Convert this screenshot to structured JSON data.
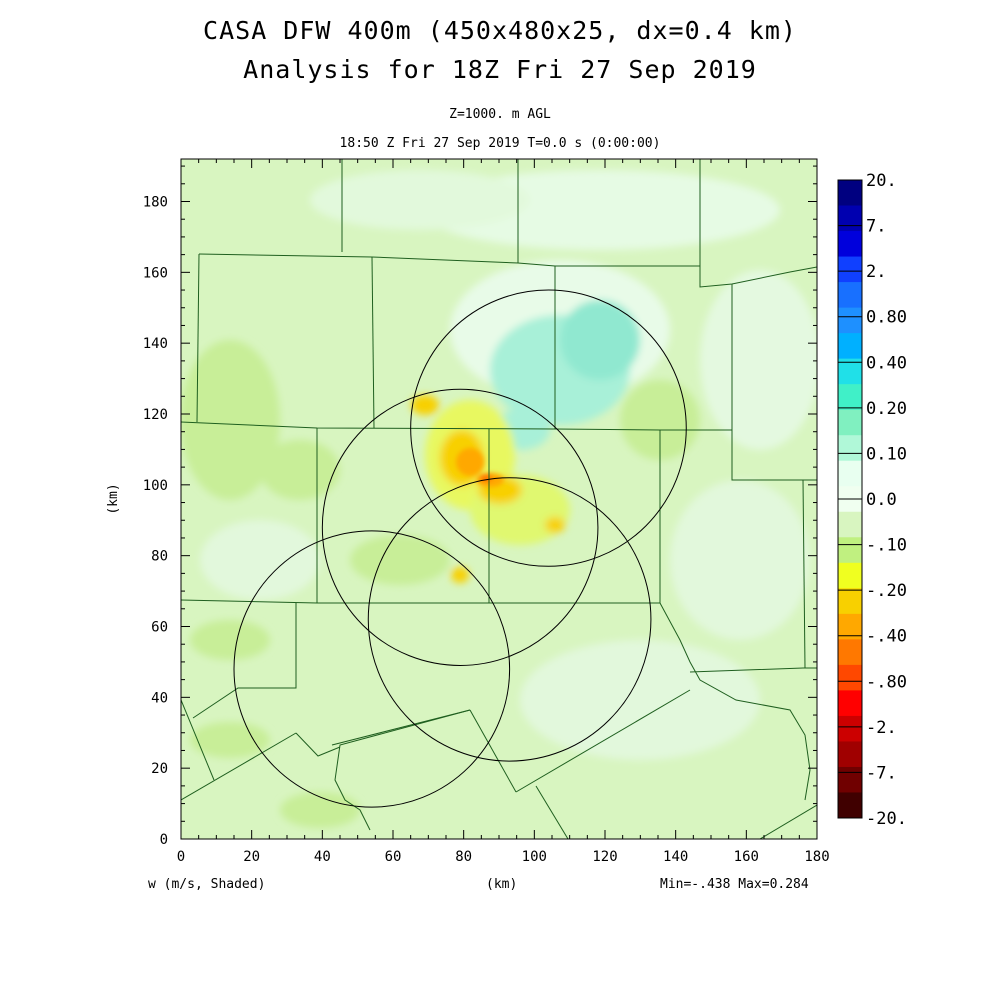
{
  "header": {
    "title_line1": "CASA DFW 400m (450x480x25, dx=0.4 km)",
    "title_line2": "Analysis for 18Z Fri 27 Sep 2019",
    "level": "Z=1000. m AGL",
    "time": "18:50 Z Fri 27 Sep 2019    T=0.0 s (0:00:00)"
  },
  "footer": {
    "variable": "w (m/s, Shaded)",
    "xunits": "(km)",
    "minmax": "Min=-.438 Max=0.284"
  },
  "chart_data": {
    "type": "heatmap",
    "variable": "w (m/s, Shaded)",
    "xlabel": "(km)",
    "ylabel": "(km)",
    "xlim": [
      0,
      180
    ],
    "ylim": [
      0,
      192
    ],
    "xticks": [
      0,
      20,
      40,
      60,
      80,
      100,
      120,
      140,
      160,
      180
    ],
    "yticks": [
      0,
      20,
      40,
      60,
      80,
      100,
      120,
      140,
      160,
      180
    ],
    "min": -0.438,
    "max": 0.284,
    "background_color": "#d8f5c0",
    "colorbar": {
      "labels": [
        "20.",
        "7.",
        "2.",
        "0.80",
        "0.40",
        "0.20",
        "0.10",
        "0.0",
        "-.10",
        "-.20",
        "-.40",
        "-.80",
        "-2.",
        "-7.",
        "-20."
      ],
      "colors": [
        "#000080",
        "#0000b0",
        "#0000dc",
        "#1040ff",
        "#1870ff",
        "#1e90ff",
        "#00b0ff",
        "#20e0e8",
        "#40f0c8",
        "#80f0c0",
        "#b0f8d8",
        "#e8fff0",
        "#f0fff0",
        "#d8f5c0",
        "#c0f080",
        "#f0ff20",
        "#f8d000",
        "#ffa800",
        "#ff7800",
        "#ff4800",
        "#ff0000",
        "#cc0000",
        "#a00000",
        "#700000",
        "#400000"
      ]
    },
    "radar_range_rings": [
      {
        "center_km": [
          104,
          116
        ],
        "radius_km": 39
      },
      {
        "center_km": [
          79,
          88
        ],
        "radius_km": 39
      },
      {
        "center_km": [
          93,
          62
        ],
        "radius_km": 40
      },
      {
        "center_km": [
          54,
          48
        ],
        "radius_km": 39
      }
    ],
    "notable_features": [
      {
        "desc": "negative w maximum (orange)",
        "center_km": [
          86,
          102
        ],
        "value": -0.438
      },
      {
        "desc": "weak positive w (cyan)",
        "center_km": [
          110,
          135
        ],
        "value": 0.284
      }
    ]
  }
}
